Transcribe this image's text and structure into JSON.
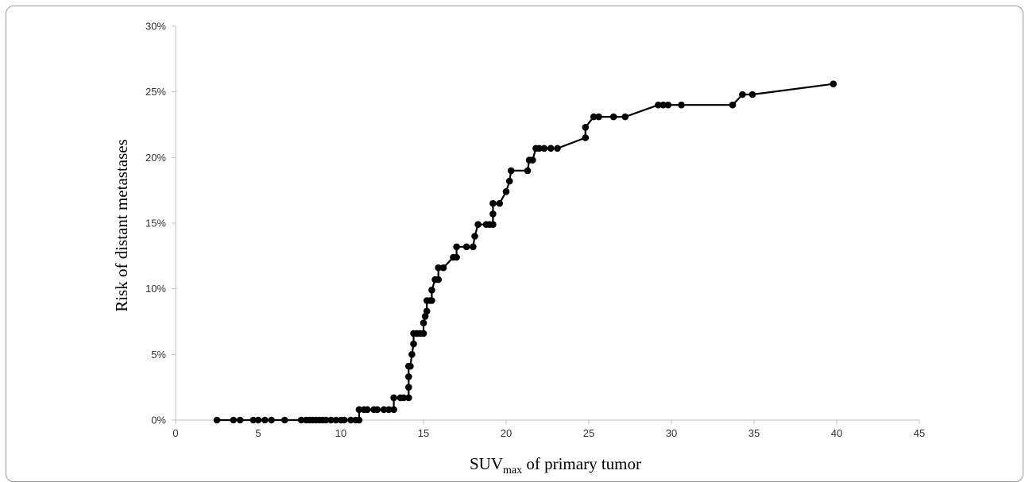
{
  "chart_data": {
    "type": "line",
    "title": "",
    "xlabel": {
      "main": "SUV",
      "sub": "max",
      "rest": " of primary tumor"
    },
    "ylabel": "Risk of distant metastases",
    "xlim": [
      0,
      45
    ],
    "ylim": [
      0,
      30
    ],
    "x_ticks": [
      0,
      5,
      10,
      15,
      20,
      25,
      30,
      35,
      40,
      45
    ],
    "y_ticks": [
      0,
      5,
      10,
      15,
      20,
      25,
      30
    ],
    "x_tick_labels": [
      "0",
      "5",
      "10",
      "15",
      "20",
      "25",
      "30",
      "35",
      "40",
      "45"
    ],
    "y_tick_labels": [
      "0%",
      "5%",
      "10%",
      "15%",
      "20%",
      "25%",
      "30%"
    ],
    "grid": false,
    "legend": "none",
    "colors": {
      "series": "#000000",
      "axis": "#bfbfbf"
    },
    "series": [
      {
        "marker": "circle",
        "points": [
          [
            2.5,
            0
          ],
          [
            3.5,
            0
          ],
          [
            3.9,
            0
          ],
          [
            4.7,
            0
          ],
          [
            5.0,
            0
          ],
          [
            5.4,
            0
          ],
          [
            5.8,
            0
          ],
          [
            6.6,
            0
          ],
          [
            7.6,
            0
          ],
          [
            7.9,
            0
          ],
          [
            8.1,
            0
          ],
          [
            8.3,
            0
          ],
          [
            8.5,
            0
          ],
          [
            8.7,
            0
          ],
          [
            8.9,
            0
          ],
          [
            9.1,
            0
          ],
          [
            9.4,
            0
          ],
          [
            9.7,
            0
          ],
          [
            10.0,
            0
          ],
          [
            10.2,
            0
          ],
          [
            10.6,
            0
          ],
          [
            10.9,
            0
          ],
          [
            11.1,
            0
          ],
          [
            11.1,
            0.8
          ],
          [
            11.4,
            0.8
          ],
          [
            11.6,
            0.8
          ],
          [
            12.0,
            0.8
          ],
          [
            12.2,
            0.8
          ],
          [
            12.6,
            0.8
          ],
          [
            12.9,
            0.8
          ],
          [
            13.2,
            0.8
          ],
          [
            13.2,
            1.7
          ],
          [
            13.6,
            1.7
          ],
          [
            13.8,
            1.7
          ],
          [
            14.1,
            1.7
          ],
          [
            14.1,
            2.5
          ],
          [
            14.1,
            3.3
          ],
          [
            14.1,
            4.1
          ],
          [
            14.2,
            4.1
          ],
          [
            14.3,
            5.0
          ],
          [
            14.4,
            5.8
          ],
          [
            14.4,
            6.6
          ],
          [
            14.6,
            6.6
          ],
          [
            14.8,
            6.6
          ],
          [
            15.0,
            6.6
          ],
          [
            15.0,
            7.4
          ],
          [
            15.1,
            7.9
          ],
          [
            15.2,
            8.3
          ],
          [
            15.2,
            9.1
          ],
          [
            15.4,
            9.1
          ],
          [
            15.5,
            9.1
          ],
          [
            15.5,
            9.9
          ],
          [
            15.7,
            10.7
          ],
          [
            15.9,
            10.7
          ],
          [
            15.9,
            11.6
          ],
          [
            16.2,
            11.6
          ],
          [
            16.8,
            12.4
          ],
          [
            17.0,
            12.4
          ],
          [
            17.0,
            13.2
          ],
          [
            17.6,
            13.2
          ],
          [
            18.0,
            13.2
          ],
          [
            18.1,
            14.0
          ],
          [
            18.3,
            14.9
          ],
          [
            18.8,
            14.9
          ],
          [
            19.0,
            14.9
          ],
          [
            19.2,
            14.9
          ],
          [
            19.2,
            15.7
          ],
          [
            19.2,
            16.5
          ],
          [
            19.6,
            16.5
          ],
          [
            20.0,
            17.4
          ],
          [
            20.2,
            18.2
          ],
          [
            20.3,
            19.0
          ],
          [
            21.3,
            19.0
          ],
          [
            21.4,
            19.8
          ],
          [
            21.6,
            19.8
          ],
          [
            21.8,
            20.7
          ],
          [
            22.0,
            20.7
          ],
          [
            22.3,
            20.7
          ],
          [
            22.7,
            20.7
          ],
          [
            23.1,
            20.7
          ],
          [
            24.8,
            21.5
          ],
          [
            24.8,
            22.3
          ],
          [
            25.3,
            23.1
          ],
          [
            25.6,
            23.1
          ],
          [
            26.5,
            23.1
          ],
          [
            27.2,
            23.1
          ],
          [
            29.2,
            24.0
          ],
          [
            29.5,
            24.0
          ],
          [
            29.8,
            24.0
          ],
          [
            30.6,
            24.0
          ],
          [
            33.7,
            24.0
          ],
          [
            34.3,
            24.8
          ],
          [
            34.9,
            24.8
          ],
          [
            39.8,
            25.6
          ]
        ]
      }
    ]
  }
}
